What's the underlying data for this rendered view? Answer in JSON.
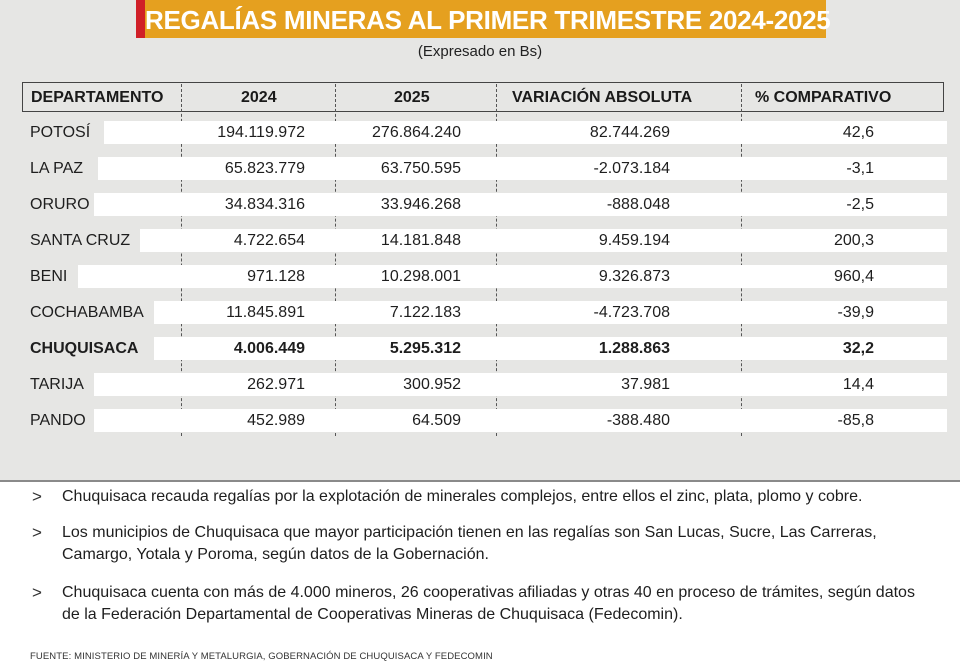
{
  "title": "REGALÍAS MINERAS AL PRIMER TRIMESTRE 2024-2025",
  "subtitle": "(Expresado en Bs)",
  "table": {
    "headers": [
      "DEPARTAMENTO",
      "2024",
      "2025",
      "VARIACIÓN ABSOLUTA",
      "% COMPARATIVO"
    ],
    "rows": [
      {
        "dept": "POTOSÍ",
        "y2024": "194.119.972",
        "y2025": "276.864.240",
        "var": "82.744.269",
        "pct": "42,6"
      },
      {
        "dept": "LA PAZ",
        "y2024": "65.823.779",
        "y2025": "63.750.595",
        "var": "-2.073.184",
        "pct": "-3,1"
      },
      {
        "dept": "ORURO",
        "y2024": "34.834.316",
        "y2025": "33.946.268",
        "var": "-888.048",
        "pct": "-2,5"
      },
      {
        "dept": "SANTA CRUZ",
        "y2024": "4.722.654",
        "y2025": "14.181.848",
        "var": "9.459.194",
        "pct": "200,3"
      },
      {
        "dept": "BENI",
        "y2024": "971.128",
        "y2025": "10.298.001",
        "var": "9.326.873",
        "pct": "960,4"
      },
      {
        "dept": "COCHABAMBA",
        "y2024": "11.845.891",
        "y2025": "7.122.183",
        "var": "-4.723.708",
        "pct": "-39,9"
      },
      {
        "dept": "CHUQUISACA",
        "y2024": "4.006.449",
        "y2025": "5.295.312",
        "var": "1.288.863",
        "pct": "32,2"
      },
      {
        "dept": "TARIJA",
        "y2024": "262.971",
        "y2025": "300.952",
        "var": "37.981",
        "pct": "14,4"
      },
      {
        "dept": "PANDO",
        "y2024": "452.989",
        "y2025": "64.509",
        "var": "-388.480",
        "pct": "-85,8"
      }
    ]
  },
  "notes": [
    {
      "bullet": ">",
      "text": "Chuquisaca recauda regalías por la explotación de minerales complejos, entre ellos el zinc, plata, plomo y cobre."
    },
    {
      "bullet": ">",
      "text": "Los municipios de Chuquisaca que mayor participación tienen en las regalías son San Lucas, Sucre, Las Carreras, Camargo, Yotala y Poroma, según datos de la Gobernación."
    },
    {
      "bullet": ">",
      "text": "Chuquisaca cuenta con más de 4.000 mineros, 26 cooperativas afiliadas y otras 40 en proceso de trámites, según datos de la Federación Departamental de Cooperativas Mineras de Chuquisaca (Fedecomin)."
    }
  ],
  "source": "FUENTE: MINISTERIO DE MINERÍA Y METALURGIA, GOBERNACIÓN DE CHUQUISACA Y FEDECOMIN",
  "colors": {
    "title_bg": "#e5a01f",
    "title_accent": "#d01f27",
    "panel_bg": "#e6e6e4"
  }
}
